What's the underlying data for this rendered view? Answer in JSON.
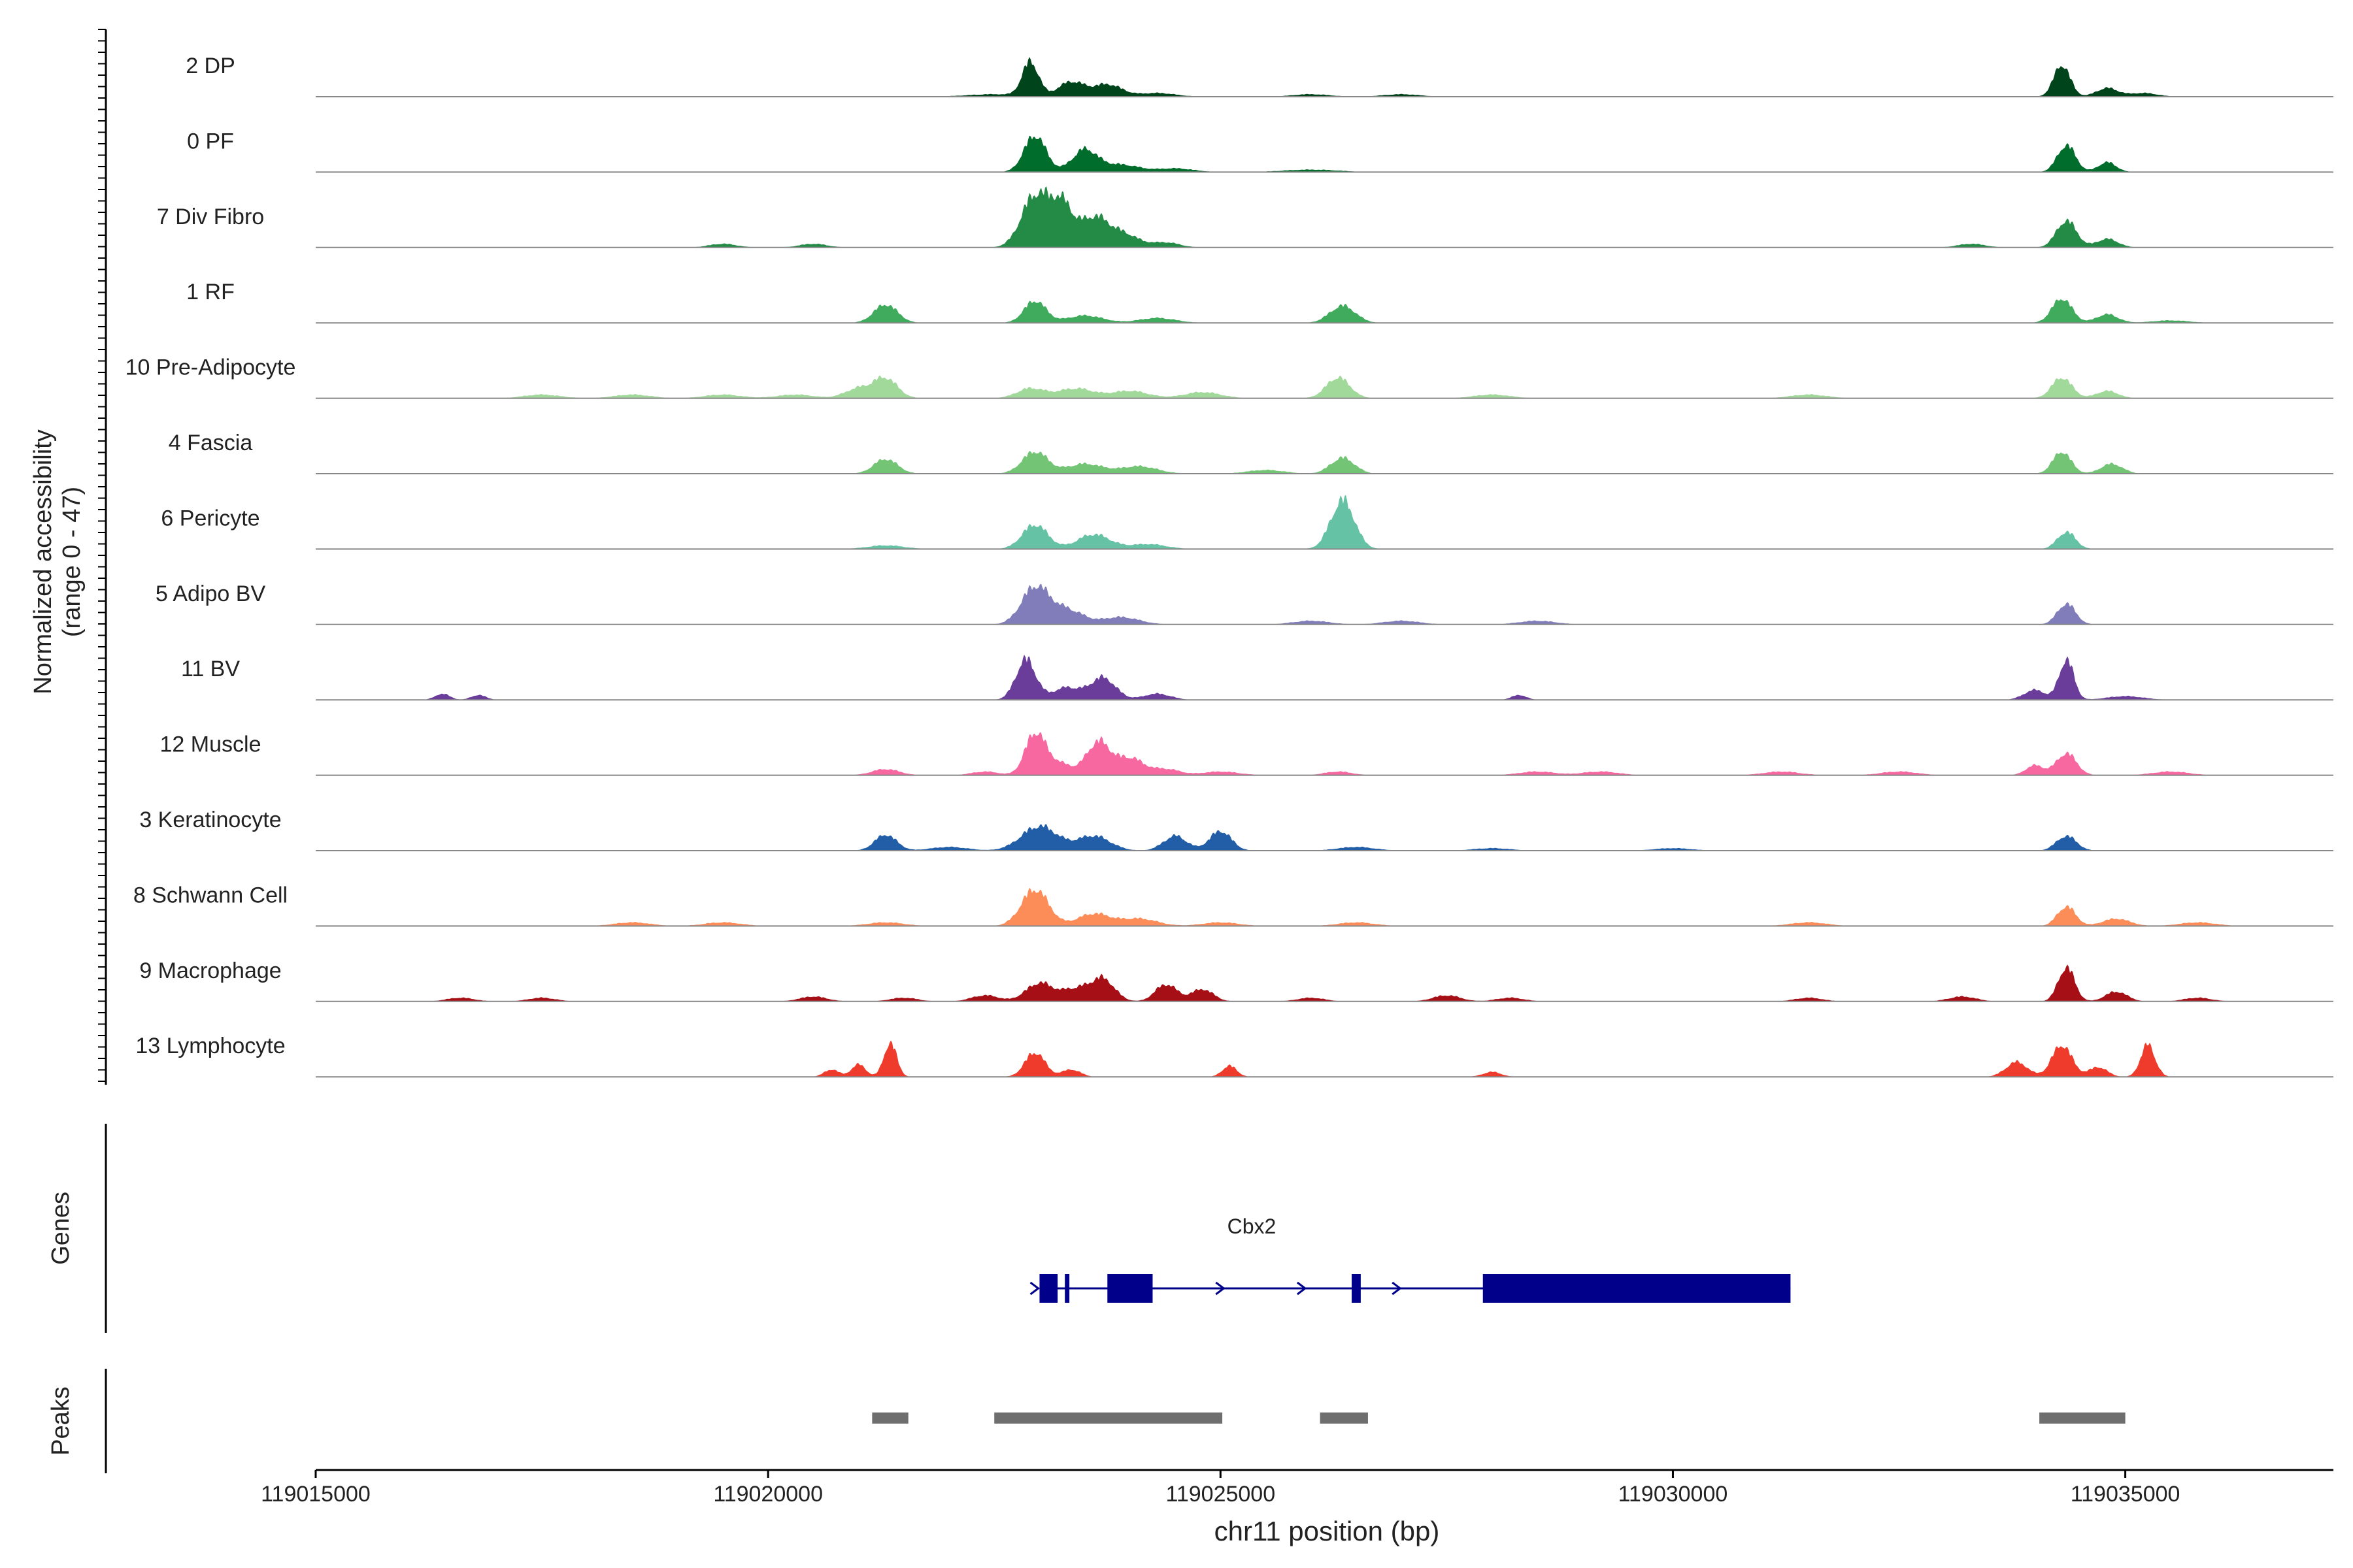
{
  "chart_data": {
    "type": "area",
    "title": "",
    "xlabel": "chr11 position (bp)",
    "ylabel_line1": "Normalized accessibility",
    "ylabel_line2": "(range 0 - 47)",
    "xlim": [
      119015000,
      119037300
    ],
    "ylim": [
      0,
      47
    ],
    "x_ticks": [
      119015000,
      119020000,
      119025000,
      119030000,
      119035000
    ],
    "x_tick_labels": [
      "119015000",
      "119020000",
      "119025000",
      "119030000",
      "119035000"
    ],
    "track_labels": {
      "genes": "Genes",
      "peaks": "Peaks"
    },
    "series": [
      {
        "name": "2 DP",
        "color": "#00441b",
        "peaks": [
          [
            119022900,
            28,
            90
          ],
          [
            119023350,
            12,
            140
          ],
          [
            119023750,
            10,
            160
          ],
          [
            119022500,
            2,
            300
          ],
          [
            119024300,
            3,
            200
          ],
          [
            119034300,
            26,
            90
          ],
          [
            119034800,
            7,
            120
          ],
          [
            119035200,
            3,
            150
          ],
          [
            119026000,
            2,
            200
          ],
          [
            119027000,
            2,
            200
          ]
        ]
      },
      {
        "name": "0 PF",
        "color": "#006d2c",
        "peaks": [
          [
            119022950,
            30,
            120
          ],
          [
            119023500,
            18,
            140
          ],
          [
            119023900,
            6,
            200
          ],
          [
            119024500,
            3,
            200
          ],
          [
            119034350,
            22,
            100
          ],
          [
            119034800,
            8,
            100
          ],
          [
            119026000,
            2,
            300
          ]
        ]
      },
      {
        "name": "7 Div Fibro",
        "color": "#238b45",
        "peaks": [
          [
            119022950,
            42,
            150
          ],
          [
            119023250,
            34,
            130
          ],
          [
            119023600,
            22,
            140
          ],
          [
            119023900,
            12,
            180
          ],
          [
            119024400,
            4,
            150
          ],
          [
            119034350,
            22,
            110
          ],
          [
            119034800,
            7,
            120
          ],
          [
            119019500,
            3,
            150
          ],
          [
            119020500,
            3,
            150
          ],
          [
            119033300,
            3,
            150
          ]
        ]
      },
      {
        "name": "1 RF",
        "color": "#41ab5d",
        "peaks": [
          [
            119021300,
            15,
            130
          ],
          [
            119022950,
            18,
            120
          ],
          [
            119023500,
            6,
            200
          ],
          [
            119024300,
            4,
            200
          ],
          [
            119026350,
            14,
            140
          ],
          [
            119034300,
            20,
            110
          ],
          [
            119034800,
            7,
            120
          ],
          [
            119035500,
            2,
            200
          ]
        ]
      },
      {
        "name": "10 Pre-Adipocyte",
        "color": "#a1d99b",
        "peaks": [
          [
            119021300,
            16,
            130
          ],
          [
            119021000,
            8,
            150
          ],
          [
            119022900,
            8,
            150
          ],
          [
            119023400,
            8,
            200
          ],
          [
            119024000,
            6,
            200
          ],
          [
            119024800,
            5,
            200
          ],
          [
            119026300,
            17,
            130
          ],
          [
            119034300,
            17,
            110
          ],
          [
            119034800,
            6,
            120
          ],
          [
            119017500,
            3,
            200
          ],
          [
            119018500,
            3,
            200
          ],
          [
            119019500,
            3,
            200
          ],
          [
            119020300,
            3,
            200
          ],
          [
            119028000,
            3,
            200
          ],
          [
            119031500,
            3,
            200
          ]
        ]
      },
      {
        "name": "4 Fascia",
        "color": "#74c476",
        "peaks": [
          [
            119021300,
            12,
            130
          ],
          [
            119022950,
            18,
            140
          ],
          [
            119023500,
            8,
            200
          ],
          [
            119024100,
            6,
            200
          ],
          [
            119026350,
            13,
            130
          ],
          [
            119034300,
            18,
            100
          ],
          [
            119034850,
            8,
            120
          ],
          [
            119025500,
            3,
            200
          ]
        ]
      },
      {
        "name": "6 Pericyte",
        "color": "#66c2a4",
        "peaks": [
          [
            119026350,
            40,
            130
          ],
          [
            119022950,
            20,
            140
          ],
          [
            119023600,
            12,
            180
          ],
          [
            119024200,
            4,
            200
          ],
          [
            119034350,
            14,
            100
          ],
          [
            119021300,
            3,
            200
          ]
        ]
      },
      {
        "name": "5 Adipo BV",
        "color": "#807dba",
        "peaks": [
          [
            119022950,
            30,
            150
          ],
          [
            119023300,
            12,
            180
          ],
          [
            119023900,
            6,
            200
          ],
          [
            119034350,
            17,
            100
          ],
          [
            119026000,
            3,
            200
          ],
          [
            119027000,
            3,
            200
          ],
          [
            119028500,
            3,
            200
          ]
        ]
      },
      {
        "name": "11 BV",
        "color": "#6a3d9a",
        "peaks": [
          [
            119022850,
            33,
            110
          ],
          [
            119023700,
            18,
            140
          ],
          [
            119023300,
            10,
            150
          ],
          [
            119024300,
            5,
            150
          ],
          [
            119034350,
            33,
            80
          ],
          [
            119034000,
            8,
            120
          ],
          [
            119016400,
            5,
            80
          ],
          [
            119016800,
            4,
            80
          ],
          [
            119035000,
            3,
            200
          ],
          [
            119028300,
            4,
            80
          ]
        ]
      },
      {
        "name": "12 Muscle",
        "color": "#f768a1",
        "peaks": [
          [
            119022950,
            33,
            110
          ],
          [
            119023650,
            27,
            130
          ],
          [
            119024000,
            14,
            150
          ],
          [
            119023200,
            10,
            150
          ],
          [
            119024400,
            5,
            150
          ],
          [
            119034350,
            18,
            110
          ],
          [
            119034000,
            8,
            100
          ],
          [
            119021300,
            5,
            150
          ],
          [
            119022400,
            3,
            150
          ],
          [
            119025000,
            3,
            200
          ],
          [
            119026300,
            3,
            150
          ],
          [
            119028500,
            3,
            200
          ],
          [
            119029200,
            3,
            200
          ],
          [
            119031200,
            3,
            200
          ],
          [
            119032500,
            3,
            200
          ],
          [
            119035500,
            3,
            200
          ]
        ]
      },
      {
        "name": "3 Keratinocyte",
        "color": "#225ea8",
        "peaks": [
          [
            119023000,
            20,
            200
          ],
          [
            119023600,
            12,
            180
          ],
          [
            119021300,
            13,
            120
          ],
          [
            119024500,
            12,
            130
          ],
          [
            119025000,
            16,
            120
          ],
          [
            119034350,
            12,
            110
          ],
          [
            119022000,
            3,
            200
          ],
          [
            119026500,
            3,
            200
          ],
          [
            119028000,
            2,
            200
          ],
          [
            119030000,
            2,
            200
          ]
        ]
      },
      {
        "name": "8 Schwann Cell",
        "color": "#fc8d59",
        "peaks": [
          [
            119022950,
            30,
            150
          ],
          [
            119023600,
            10,
            180
          ],
          [
            119024100,
            6,
            200
          ],
          [
            119034350,
            16,
            100
          ],
          [
            119034900,
            6,
            150
          ],
          [
            119018500,
            3,
            200
          ],
          [
            119019500,
            3,
            200
          ],
          [
            119021300,
            3,
            200
          ],
          [
            119025000,
            3,
            200
          ],
          [
            119026500,
            3,
            200
          ],
          [
            119031500,
            3,
            200
          ],
          [
            119035800,
            3,
            200
          ]
        ]
      },
      {
        "name": "9 Macrophage",
        "color": "#a50f15",
        "peaks": [
          [
            119023000,
            15,
            150
          ],
          [
            119023400,
            10,
            150
          ],
          [
            119023700,
            18,
            130
          ],
          [
            119024400,
            14,
            120
          ],
          [
            119024800,
            10,
            120
          ],
          [
            119034350,
            28,
            90
          ],
          [
            119034900,
            8,
            120
          ],
          [
            119016600,
            3,
            150
          ],
          [
            119017500,
            3,
            150
          ],
          [
            119020500,
            4,
            150
          ],
          [
            119021500,
            3,
            150
          ],
          [
            119022400,
            5,
            150
          ],
          [
            119026000,
            3,
            150
          ],
          [
            119027500,
            5,
            150
          ],
          [
            119028200,
            3,
            150
          ],
          [
            119031500,
            3,
            150
          ],
          [
            119033200,
            4,
            150
          ],
          [
            119035800,
            3,
            150
          ]
        ]
      },
      {
        "name": "13 Lymphocyte",
        "color": "#ef3b2c",
        "peaks": [
          [
            119021350,
            28,
            70
          ],
          [
            119021000,
            10,
            80
          ],
          [
            119020700,
            6,
            80
          ],
          [
            119022950,
            20,
            110
          ],
          [
            119023350,
            6,
            100
          ],
          [
            119025100,
            9,
            80
          ],
          [
            119028000,
            4,
            100
          ],
          [
            119034300,
            26,
            110
          ],
          [
            119033800,
            12,
            120
          ],
          [
            119034700,
            8,
            100
          ],
          [
            119035250,
            26,
            80
          ]
        ]
      }
    ],
    "genes": [
      {
        "name": "Cbx2",
        "start": 119023000,
        "end": 119031300,
        "strand": "+",
        "exons": [
          [
            119023000,
            119023200
          ],
          [
            119023280,
            119023330
          ],
          [
            119023750,
            119024250
          ],
          [
            119026450,
            119026550
          ],
          [
            119027900,
            119031300
          ]
        ],
        "arrows": [
          119022950,
          119025900,
          119026950,
          119025000
        ]
      }
    ],
    "peak_regions": [
      [
        119021150,
        119021550
      ],
      [
        119022500,
        119025020
      ],
      [
        119026100,
        119026630
      ],
      [
        119034050,
        119035000
      ]
    ]
  }
}
